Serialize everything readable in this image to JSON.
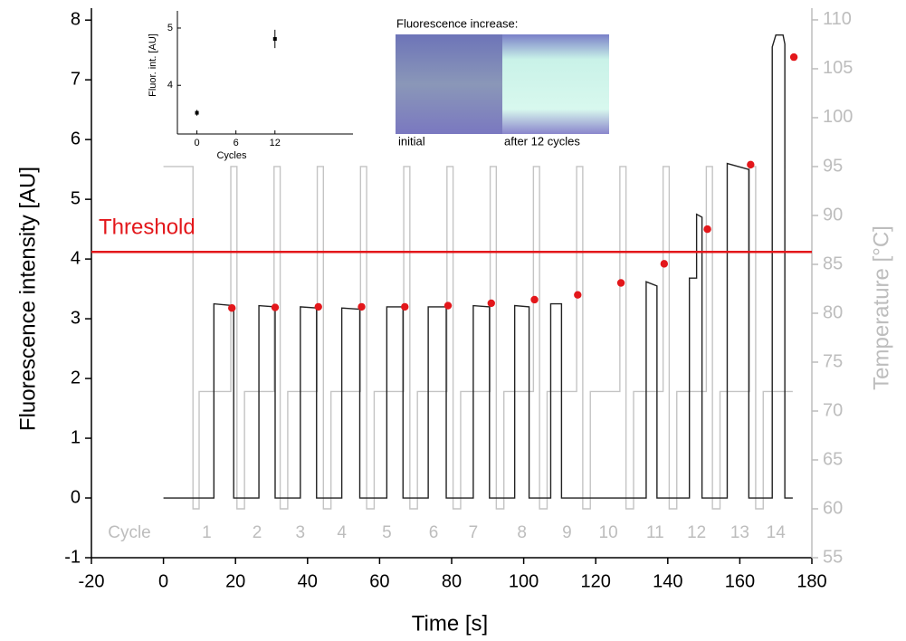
{
  "chart_data": {
    "type": "line",
    "xlabel": "Time [s]",
    "ylabel": "Fluorescence intensity [AU]",
    "y2label": "Temperature [°C]",
    "xlim": [
      -20,
      180
    ],
    "ylim": [
      -1,
      8.2
    ],
    "y2lim": [
      55,
      111.2
    ],
    "xticks": [
      -20,
      0,
      20,
      40,
      60,
      80,
      100,
      120,
      140,
      160,
      180
    ],
    "yticks": [
      -1,
      0,
      1,
      2,
      3,
      4,
      5,
      6,
      7,
      8
    ],
    "y2ticks": [
      55,
      60,
      65,
      70,
      75,
      80,
      85,
      90,
      95,
      100,
      105,
      110
    ],
    "y2color": "#bdbdbd",
    "series": [
      {
        "type": "line",
        "axis": "y2",
        "color": "#c4c4c4",
        "x": [
          0,
          8.2,
          8.2,
          9.9,
          9.9,
          18.7,
          18.7,
          20.4,
          20.4,
          22.5,
          22.5,
          30.7,
          30.7,
          32.4,
          32.4,
          34.5,
          34.5,
          42.7,
          42.7,
          44.4,
          44.4,
          46.5,
          46.5,
          54.7,
          54.7,
          56.4,
          56.4,
          58.5,
          58.5,
          66.7,
          66.7,
          68.4,
          68.4,
          70.5,
          70.5,
          78.7,
          78.7,
          80.4,
          80.4,
          82.5,
          82.5,
          90.7,
          90.7,
          92.4,
          92.4,
          94.5,
          94.5,
          102.7,
          102.7,
          104.4,
          104.4,
          106.5,
          106.5,
          114.7,
          114.7,
          116.4,
          116.4,
          118.5,
          118.5,
          126.7,
          126.7,
          128.4,
          128.4,
          130.5,
          130.5,
          138.7,
          138.7,
          140.4,
          140.4,
          142.5,
          142.5,
          150.7,
          150.7,
          152.4,
          152.4,
          154.5,
          154.5,
          162.7,
          162.7,
          164.4,
          164.4,
          166.5,
          166.5,
          174.7
        ],
        "values": [
          95,
          95,
          60,
          60,
          72,
          72,
          95,
          95,
          60,
          60,
          72,
          72,
          95,
          95,
          60,
          60,
          72,
          72,
          95,
          95,
          60,
          60,
          72,
          72,
          95,
          95,
          60,
          60,
          72,
          72,
          95,
          95,
          60,
          60,
          72,
          72,
          95,
          95,
          60,
          60,
          72,
          72,
          95,
          95,
          60,
          60,
          72,
          72,
          95,
          95,
          60,
          60,
          72,
          72,
          95,
          95,
          60,
          60,
          72,
          72,
          95,
          95,
          60,
          60,
          72,
          72,
          95,
          95,
          60,
          60,
          72,
          72,
          95,
          95,
          60,
          60,
          72,
          72,
          95,
          95,
          60,
          60,
          72,
          72
        ]
      },
      {
        "type": "line",
        "color": "#222222",
        "x": [
          0,
          14,
          14,
          19.5,
          19.5,
          26.5,
          26.5,
          31,
          31,
          38,
          38,
          42.5,
          42.5,
          49.5,
          49.5,
          54.5,
          54.5,
          62,
          62,
          66.5,
          66.5,
          73.5,
          73.5,
          78.5,
          78.5,
          86,
          86,
          90.5,
          90.5,
          97.5,
          97.5,
          101.5,
          101.5,
          107.5,
          107.5,
          110.5,
          110.5,
          134,
          134,
          137,
          137,
          146,
          146,
          148,
          148,
          149.5,
          149.5,
          156.5,
          156.5,
          162.5,
          162.5,
          169,
          169,
          170,
          172,
          172.5,
          172.5,
          174.7
        ],
        "values": [
          0,
          0,
          3.25,
          3.22,
          0,
          0,
          3.22,
          3.2,
          0,
          0,
          3.2,
          3.18,
          0,
          0,
          3.18,
          3.16,
          0,
          0,
          3.2,
          3.2,
          0,
          0,
          3.2,
          3.2,
          0,
          0,
          3.22,
          3.2,
          0,
          0,
          3.22,
          3.2,
          0,
          0,
          3.25,
          3.25,
          0,
          0,
          3.62,
          3.55,
          0,
          0,
          3.68,
          3.68,
          4.75,
          4.7,
          0,
          0,
          5.6,
          5.5,
          0,
          0,
          7.55,
          7.75,
          7.75,
          7.6,
          0,
          0
        ]
      },
      {
        "type": "scatter",
        "color": "#e3171b",
        "x": [
          19,
          31,
          43,
          55,
          67,
          79,
          91,
          103,
          115,
          127,
          139,
          151,
          163,
          175
        ],
        "values": [
          3.18,
          3.19,
          3.2,
          3.2,
          3.2,
          3.22,
          3.26,
          3.32,
          3.4,
          3.6,
          3.92,
          4.5,
          5.58,
          7.38
        ]
      }
    ],
    "threshold": {
      "value": 4.12,
      "label": "Threshold",
      "color": "#e3171b"
    },
    "cycle_title": "Cycle",
    "cycles": {
      "labels": [
        "1",
        "2",
        "3",
        "4",
        "5",
        "6",
        "7",
        "8",
        "9",
        "10",
        "11",
        "12",
        "13",
        "14"
      ],
      "x": [
        12,
        26,
        38,
        49.5,
        62,
        75,
        86,
        99.5,
        112,
        123.5,
        136.5,
        148,
        160,
        170
      ]
    },
    "inset": {
      "type": "scatter",
      "xlabel": "Cycles",
      "ylabel": "Fluor. int. [AU]",
      "xlim": [
        -3,
        24
      ],
      "ylim": [
        3.15,
        5.3
      ],
      "xticks": [
        0,
        6,
        12
      ],
      "yticks": [
        4,
        5
      ],
      "x": [
        0,
        12
      ],
      "values": [
        3.52,
        4.81
      ],
      "errors": [
        0.05,
        0.16
      ]
    },
    "image_panel": {
      "title": "Fluorescence increase:",
      "left_label": "initial",
      "right_label": "after 12 cycles"
    }
  }
}
